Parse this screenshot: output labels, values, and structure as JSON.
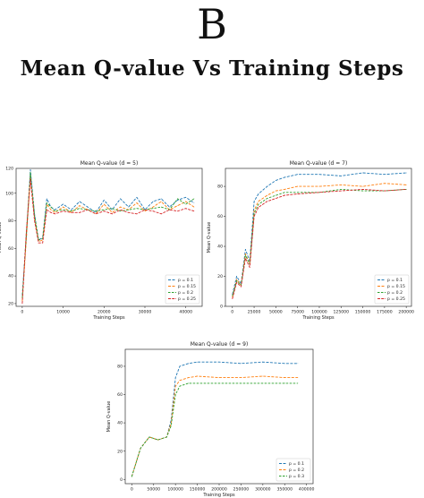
{
  "header": {
    "letter": "B",
    "title": "Mean Q-value Vs Training Steps"
  },
  "chart_data": [
    {
      "type": "line",
      "title": "Mean Q-value (d = 5)",
      "xlabel": "Training Steps",
      "ylabel": "Mean Q-value",
      "xlim": [
        -1500,
        44000
      ],
      "ylim": [
        18,
        118
      ],
      "xticks": [
        0,
        10000,
        20000,
        30000,
        40000
      ],
      "xtick_labels": [
        "0",
        "10000",
        "20000",
        "30000",
        "40000"
      ],
      "yticks": [
        20,
        40,
        60,
        80,
        100
      ],
      "ytick_labels": [
        "20",
        "40",
        "60",
        "80",
        "100"
      ],
      "top_tick_label": "120",
      "legend_position": "lower-right",
      "grid": false,
      "x": [
        0,
        1000,
        2000,
        3000,
        4000,
        5000,
        6000,
        7000,
        8000,
        10000,
        12000,
        14000,
        16000,
        18000,
        20000,
        22000,
        24000,
        26000,
        28000,
        30000,
        32000,
        34000,
        36000,
        38000,
        40000,
        42000
      ],
      "series": [
        {
          "name": "p = 0.1",
          "color": "#1f77b4",
          "values": [
            26,
            68,
            117,
            85,
            66,
            68,
            96,
            90,
            88,
            92,
            88,
            94,
            90,
            86,
            95,
            88,
            96,
            90,
            97,
            88,
            94,
            96,
            90,
            95,
            97,
            93
          ]
        },
        {
          "name": "p = 0.15",
          "color": "#ff7f0e",
          "values": [
            22,
            66,
            113,
            82,
            65,
            66,
            92,
            88,
            86,
            90,
            86,
            91,
            88,
            85,
            92,
            86,
            90,
            88,
            93,
            87,
            90,
            94,
            88,
            91,
            94,
            90
          ]
        },
        {
          "name": "p = 0.2",
          "color": "#2ca02c",
          "values": [
            24,
            70,
            115,
            84,
            66,
            67,
            93,
            90,
            87,
            88,
            87,
            89,
            88,
            87,
            88,
            89,
            87,
            88,
            89,
            88,
            89,
            90,
            88,
            96,
            92,
            96
          ]
        },
        {
          "name": "p = 0.25",
          "color": "#d62728",
          "values": [
            20,
            72,
            110,
            80,
            64,
            64,
            88,
            86,
            85,
            87,
            86,
            86,
            88,
            85,
            87,
            85,
            88,
            86,
            85,
            88,
            87,
            85,
            88,
            87,
            89,
            87
          ]
        }
      ]
    },
    {
      "type": "line",
      "title": "Mean Q-value (d = 7)",
      "xlabel": "Training Steps",
      "ylabel": "Mean Q-value",
      "xlim": [
        -8000,
        206000
      ],
      "ylim": [
        0,
        92
      ],
      "xticks": [
        0,
        25000,
        50000,
        75000,
        100000,
        125000,
        150000,
        175000,
        200000
      ],
      "xtick_labels": [
        "0",
        "25000",
        "50000",
        "75000",
        "100000",
        "125000",
        "150000",
        "175000",
        "200000"
      ],
      "yticks": [
        0,
        20,
        40,
        60,
        80
      ],
      "ytick_labels": [
        "0",
        "20",
        "40",
        "60",
        "80"
      ],
      "legend_position": "lower-right",
      "grid": false,
      "x": [
        0,
        5000,
        10000,
        15000,
        20000,
        25000,
        30000,
        40000,
        50000,
        60000,
        75000,
        100000,
        125000,
        150000,
        175000,
        200000
      ],
      "series": [
        {
          "name": "p = 0.1",
          "color": "#1f77b4",
          "values": [
            8,
            20,
            15,
            38,
            30,
            70,
            75,
            80,
            84,
            86,
            88,
            88,
            87,
            89,
            88,
            89
          ]
        },
        {
          "name": "p = 0.15",
          "color": "#ff7f0e",
          "values": [
            6,
            18,
            14,
            35,
            28,
            64,
            70,
            74,
            77,
            78,
            80,
            80,
            81,
            80,
            82,
            81
          ]
        },
        {
          "name": "p = 0.2",
          "color": "#2ca02c",
          "values": [
            7,
            17,
            14,
            34,
            28,
            62,
            68,
            72,
            74,
            76,
            76,
            76,
            78,
            77,
            77,
            78
          ]
        },
        {
          "name": "p = 0.25",
          "color": "#d62728",
          "values": [
            5,
            16,
            13,
            32,
            26,
            60,
            66,
            70,
            72,
            74,
            75,
            76,
            77,
            78,
            77,
            78
          ]
        }
      ]
    },
    {
      "type": "line",
      "title": "Mean Q-value (d = 9)",
      "xlabel": "Training Steps",
      "ylabel": "Mean Q-value",
      "xlim": [
        -15000,
        415000
      ],
      "ylim": [
        -3,
        92
      ],
      "xticks": [
        0,
        50000,
        100000,
        150000,
        200000,
        250000,
        300000,
        350000,
        400000
      ],
      "xtick_labels": [
        "0",
        "50000",
        "100000",
        "150000",
        "200000",
        "250000",
        "300000",
        "350000",
        "400000"
      ],
      "yticks": [
        0,
        20,
        40,
        60,
        80
      ],
      "ytick_labels": [
        "0",
        "20",
        "40",
        "60",
        "80"
      ],
      "legend_position": "lower-right",
      "grid": false,
      "x": [
        0,
        20000,
        40000,
        60000,
        80000,
        90000,
        100000,
        110000,
        130000,
        150000,
        200000,
        250000,
        300000,
        350000,
        380000
      ],
      "series": [
        {
          "name": "p = 0.1",
          "color": "#1f77b4",
          "values": [
            2,
            22,
            30,
            28,
            30,
            42,
            72,
            80,
            82,
            83,
            83,
            82,
            83,
            82,
            82
          ]
        },
        {
          "name": "p = 0.2",
          "color": "#ff7f0e",
          "values": [
            2,
            22,
            30,
            28,
            30,
            40,
            66,
            70,
            72,
            73,
            72,
            72,
            73,
            72,
            72
          ]
        },
        {
          "name": "p = 0.3",
          "color": "#2ca02c",
          "values": [
            2,
            22,
            30,
            28,
            30,
            38,
            60,
            66,
            68,
            68,
            68,
            68,
            68,
            68,
            68
          ]
        }
      ]
    }
  ]
}
